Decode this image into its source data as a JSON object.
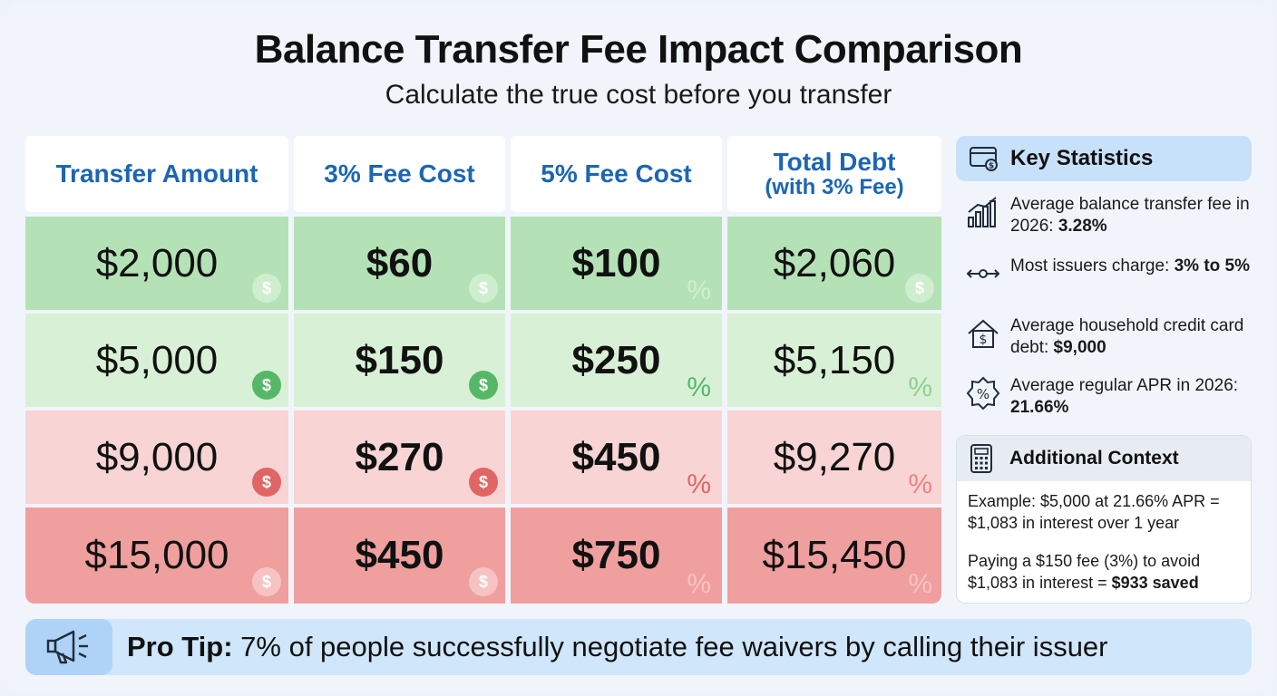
{
  "title": "Balance Transfer Fee Impact Comparison",
  "subtitle": "Calculate the true cost before you transfer",
  "table": {
    "headers": [
      {
        "line1": "Transfer Amount",
        "line2": ""
      },
      {
        "line1": "3% Fee Cost",
        "line2": ""
      },
      {
        "line1": "5% Fee Cost",
        "line2": ""
      },
      {
        "line1": "Total Debt",
        "line2": "(with 3% Fee)"
      }
    ],
    "rows": [
      [
        "$2,000",
        "$60",
        "$100",
        "$2,060"
      ],
      [
        "$5,000",
        "$150",
        "$250",
        "$5,150"
      ],
      [
        "$9,000",
        "$270",
        "$450",
        "$9,270"
      ],
      [
        "$15,000",
        "$450",
        "$750",
        "$15,450"
      ]
    ],
    "row_colors": [
      "#b4e2b6",
      "#d8f1d6",
      "#f8d4d4",
      "#ef9f9e"
    ],
    "badge_colors": {
      "light-green": "#cfeecf",
      "green": "#55b866",
      "red": "#e06565",
      "light-red": "#f6c3c3"
    },
    "badge_symbols": {
      "dollar": "$",
      "percent": "%"
    }
  },
  "key_statistics": {
    "title": "Key Statistics",
    "items": [
      {
        "icon": "bar-chart-icon",
        "text": "Average balance transfer fee in 2026: ",
        "bold": "3.28%"
      },
      {
        "icon": "range-slider-icon",
        "text": "Most issuers charge: ",
        "bold": "3% to 5%"
      },
      {
        "icon": "house-dollar-icon",
        "text": "Average household credit card debt: ",
        "bold": "$9,000"
      },
      {
        "icon": "percent-badge-icon",
        "text": "Average regular APR in 2026: ",
        "bold": "21.66%"
      }
    ]
  },
  "additional_context": {
    "title": "Additional Context",
    "example": "Example: $5,000 at 21.66% APR = $1,083 in interest over 1 year",
    "paying": "Paying a $150 fee (3%) to avoid $1,083 in interest = ",
    "paying_bold": "$933 saved"
  },
  "pro_tip": {
    "label": "Pro Tip:",
    "text": " 7% of people successfully negotiate fee waivers by calling their issuer"
  }
}
